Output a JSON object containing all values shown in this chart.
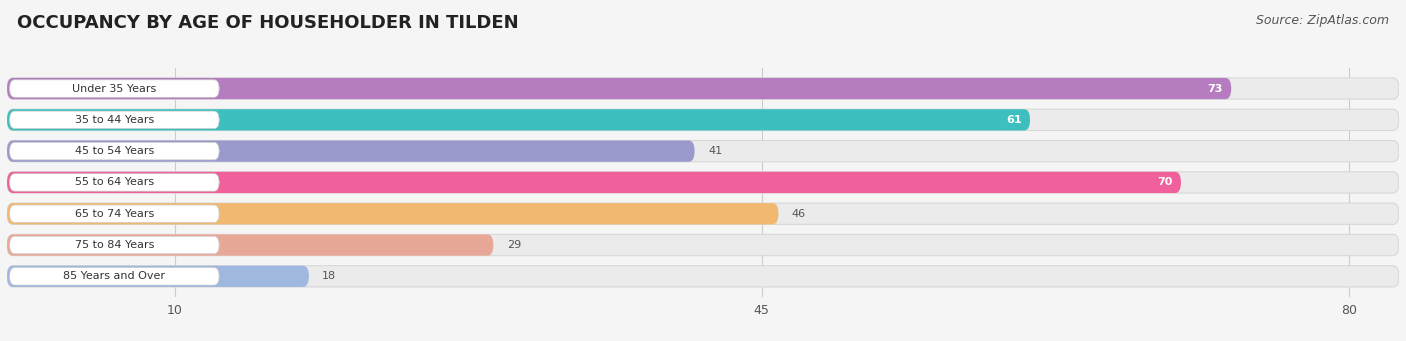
{
  "title": "OCCUPANCY BY AGE OF HOUSEHOLDER IN TILDEN",
  "source": "Source: ZipAtlas.com",
  "categories": [
    "Under 35 Years",
    "35 to 44 Years",
    "45 to 54 Years",
    "55 to 64 Years",
    "65 to 74 Years",
    "75 to 84 Years",
    "85 Years and Over"
  ],
  "values": [
    73,
    61,
    41,
    70,
    46,
    29,
    18
  ],
  "bar_colors": [
    "#b57dc0",
    "#3dbfbf",
    "#9999cc",
    "#f0609a",
    "#f0b870",
    "#e8a898",
    "#a0b8e0"
  ],
  "label_colors": [
    "white",
    "white",
    "#555555",
    "white",
    "#555555",
    "#555555",
    "#555555"
  ],
  "value_colors": [
    "white",
    "white",
    "#555555",
    "white",
    "#555555",
    "#555555",
    "#555555"
  ],
  "xlim_max": 83,
  "xticks": [
    10,
    45,
    80
  ],
  "title_fontsize": 13,
  "source_fontsize": 9,
  "bar_height": 0.68,
  "fig_bg_color": "#f5f5f5",
  "bar_bg_color": "#ebebeb",
  "label_box_color": "#ffffff",
  "gridline_color": "#cccccc"
}
